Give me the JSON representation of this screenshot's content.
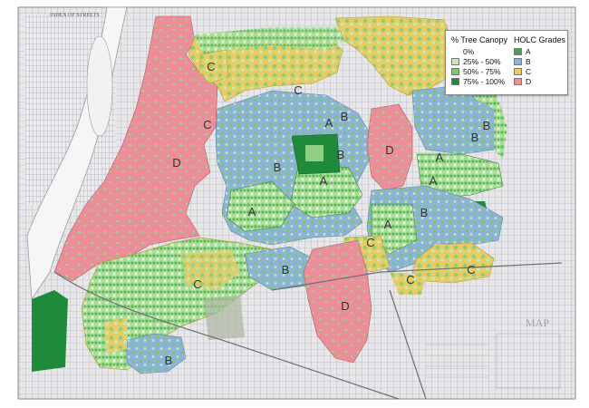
{
  "map": {
    "title_text": "INDEX OF STREETS",
    "colors": {
      "paper": "#e9e9ec",
      "street_line": "#9a9aa0",
      "grade_a": "#4f9d56",
      "grade_b": "#8db3d6",
      "grade_c": "#e6cc63",
      "grade_d": "#ea8f99",
      "canopy_0": "#f4f4f4",
      "canopy_25_50": "#c7e8b8",
      "canopy_50_75": "#78c96a",
      "canopy_75_100": "#1f8a3a"
    },
    "grade_labels": [
      "C",
      "C",
      "C",
      "D",
      "A",
      "B",
      "B",
      "D",
      "B",
      "B",
      "A",
      "A",
      "B",
      "A",
      "A",
      "B",
      "A",
      "C",
      "C",
      "C",
      "C",
      "B",
      "D",
      "B"
    ]
  },
  "legend": {
    "canopy_title": "% Tree Canopy",
    "canopy_items": [
      {
        "label": "0%",
        "color": ""
      },
      {
        "label": "25% - 50%",
        "color": "#c7e8b8"
      },
      {
        "label": "50% - 75%",
        "color": "#78c96a"
      },
      {
        "label": "75% - 100%",
        "color": "#1f8a3a"
      }
    ],
    "holc_title": "HOLC Grades",
    "holc_items": [
      {
        "label": "A",
        "color": "#4f9d56"
      },
      {
        "label": "B",
        "color": "#8db3d6"
      },
      {
        "label": "C",
        "color": "#e6cc63"
      },
      {
        "label": "D",
        "color": "#ea8f99"
      }
    ]
  }
}
